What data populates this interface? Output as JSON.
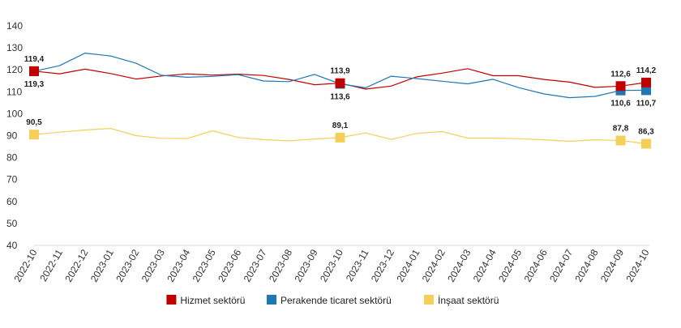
{
  "chart_data": {
    "type": "line",
    "title": "",
    "xlabel": "",
    "ylabel": "",
    "ylim": [
      40,
      140
    ],
    "yticks": [
      40,
      50,
      60,
      70,
      80,
      90,
      100,
      110,
      120,
      130,
      140
    ],
    "grid": "horizontal baseline only",
    "legend_position": "bottom-center",
    "categories": [
      "2022-10",
      "2022-11",
      "2022-12",
      "2023-01",
      "2023-02",
      "2023-03",
      "2023-04",
      "2023-05",
      "2023-06",
      "2023-07",
      "2023-08",
      "2023-09",
      "2023-10",
      "2023-11",
      "2023-12",
      "2024-01",
      "2024-02",
      "2024-03",
      "2024-04",
      "2024-05",
      "2024-06",
      "2024-07",
      "2024-08",
      "2024-09",
      "2024-10"
    ],
    "series": [
      {
        "name": "Hizmet sektörü",
        "color": "#c00000",
        "values": [
          119.4,
          118.2,
          120.3,
          118.3,
          115.8,
          117.2,
          118.1,
          117.6,
          118.0,
          117.4,
          115.6,
          113.2,
          113.9,
          111.2,
          112.6,
          116.8,
          118.5,
          120.5,
          117.3,
          117.3,
          115.6,
          114.4,
          112.0,
          112.6,
          114.2
        ]
      },
      {
        "name": "Perakende ticaret sektörü",
        "color": "#1f77b4",
        "values": [
          119.3,
          121.9,
          127.6,
          126.3,
          123.0,
          117.5,
          116.6,
          117.0,
          117.8,
          114.9,
          114.6,
          117.9,
          113.6,
          111.8,
          117.1,
          116.0,
          114.8,
          113.6,
          115.7,
          111.9,
          109.0,
          107.3,
          107.9,
          110.6,
          110.7
        ]
      },
      {
        "name": "İnşaat sektörü",
        "color": "#f5cf57",
        "values": [
          90.5,
          91.6,
          92.6,
          93.3,
          90.0,
          88.8,
          88.7,
          92.2,
          89.2,
          88.2,
          87.6,
          88.5,
          89.1,
          91.2,
          88.3,
          91.0,
          91.9,
          88.9,
          88.9,
          88.6,
          88.1,
          87.4,
          88.1,
          87.8,
          86.3
        ]
      }
    ],
    "highlight_indices": [
      0,
      12,
      23,
      24
    ],
    "labels": [
      {
        "series": 0,
        "index": 0,
        "text": "119,4",
        "pos": "above"
      },
      {
        "series": 1,
        "index": 0,
        "text": "119,3",
        "pos": "below"
      },
      {
        "series": 2,
        "index": 0,
        "text": "90,5",
        "pos": "above"
      },
      {
        "series": 0,
        "index": 12,
        "text": "113,9",
        "pos": "above"
      },
      {
        "series": 1,
        "index": 12,
        "text": "113,6",
        "pos": "below"
      },
      {
        "series": 2,
        "index": 12,
        "text": "89,1",
        "pos": "above"
      },
      {
        "series": 0,
        "index": 23,
        "text": "112,6",
        "pos": "above"
      },
      {
        "series": 1,
        "index": 23,
        "text": "110,6",
        "pos": "below"
      },
      {
        "series": 2,
        "index": 23,
        "text": "87,8",
        "pos": "above"
      },
      {
        "series": 0,
        "index": 24,
        "text": "114,2",
        "pos": "above"
      },
      {
        "series": 1,
        "index": 24,
        "text": "110,7",
        "pos": "below"
      },
      {
        "series": 2,
        "index": 24,
        "text": "86,3",
        "pos": "above"
      }
    ]
  }
}
